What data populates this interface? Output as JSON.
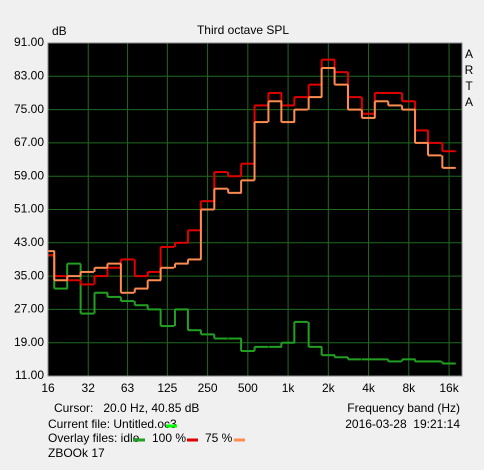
{
  "chart_data": {
    "type": "step",
    "title": "Third octave SPL",
    "y_label": "dB",
    "x_label": "Frequency band (Hz)",
    "brand": "ARTA",
    "cursor": "Cursor:   20.0 Hz, 40.85 dB",
    "current_file": {
      "label": "Current file: Untitled.oc3",
      "color": "#00ff00"
    },
    "overlay_label": "Overlay files: idle",
    "timestamp": "2016-03-28  19:21:14",
    "device": "ZBOOk 17",
    "log_x": true,
    "grid": true,
    "xlim": [
      16,
      20000
    ],
    "ylim": [
      11,
      91
    ],
    "xticks": [
      16,
      32,
      63,
      125,
      250,
      500,
      {
        "value": 1000,
        "label": "1k"
      },
      {
        "value": 2000,
        "label": "2k"
      },
      {
        "value": 4000,
        "label": "4k"
      },
      {
        "value": 8000,
        "label": "8k"
      },
      {
        "value": 16000,
        "label": "16k"
      }
    ],
    "yticks": [
      {
        "value": 11,
        "label": "11.00"
      },
      {
        "value": 19,
        "label": "19.00"
      },
      {
        "value": 27,
        "label": "27.00"
      },
      {
        "value": 35,
        "label": "35.00"
      },
      {
        "value": 43,
        "label": "43.00"
      },
      {
        "value": 51,
        "label": "51.00"
      },
      {
        "value": 59,
        "label": "59.00"
      },
      {
        "value": 67,
        "label": "67.00"
      },
      {
        "value": 75,
        "label": "75.00"
      },
      {
        "value": 83,
        "label": "83.00"
      },
      {
        "value": 91,
        "label": "91.00"
      }
    ],
    "x": [
      16,
      20,
      25,
      31.5,
      40,
      50,
      63,
      80,
      100,
      125,
      160,
      200,
      250,
      315,
      400,
      500,
      630,
      800,
      1000,
      1250,
      1600,
      2000,
      2500,
      3150,
      4000,
      5000,
      6300,
      8000,
      10000,
      12500,
      16000
    ],
    "series": [
      {
        "name": "idle",
        "color": "#22a022",
        "values": [
          40,
          32,
          38,
          26,
          31,
          30,
          29,
          28,
          27,
          23,
          27,
          22,
          21,
          20,
          20,
          17,
          18,
          18,
          19,
          24,
          18,
          16,
          15.5,
          15,
          15,
          15,
          14.5,
          15,
          14.5,
          14.5,
          14
        ]
      },
      {
        "name": "100 %",
        "color": "#e00000",
        "values": [
          40,
          35,
          34,
          33,
          35,
          37,
          39,
          35,
          36,
          42,
          43,
          46,
          53,
          60,
          59,
          62,
          76,
          79,
          76,
          78,
          81,
          87,
          84,
          78,
          74,
          79,
          79,
          77,
          70,
          67,
          65
        ]
      },
      {
        "name": "75 %",
        "color": "#ff8c50",
        "values": [
          41,
          34,
          35,
          36,
          37,
          38,
          31,
          32,
          34,
          37,
          38,
          39,
          51,
          56,
          55,
          58,
          72,
          77,
          72,
          75,
          78,
          85,
          81,
          75,
          73,
          77,
          76,
          75,
          67,
          64,
          61
        ]
      }
    ]
  }
}
